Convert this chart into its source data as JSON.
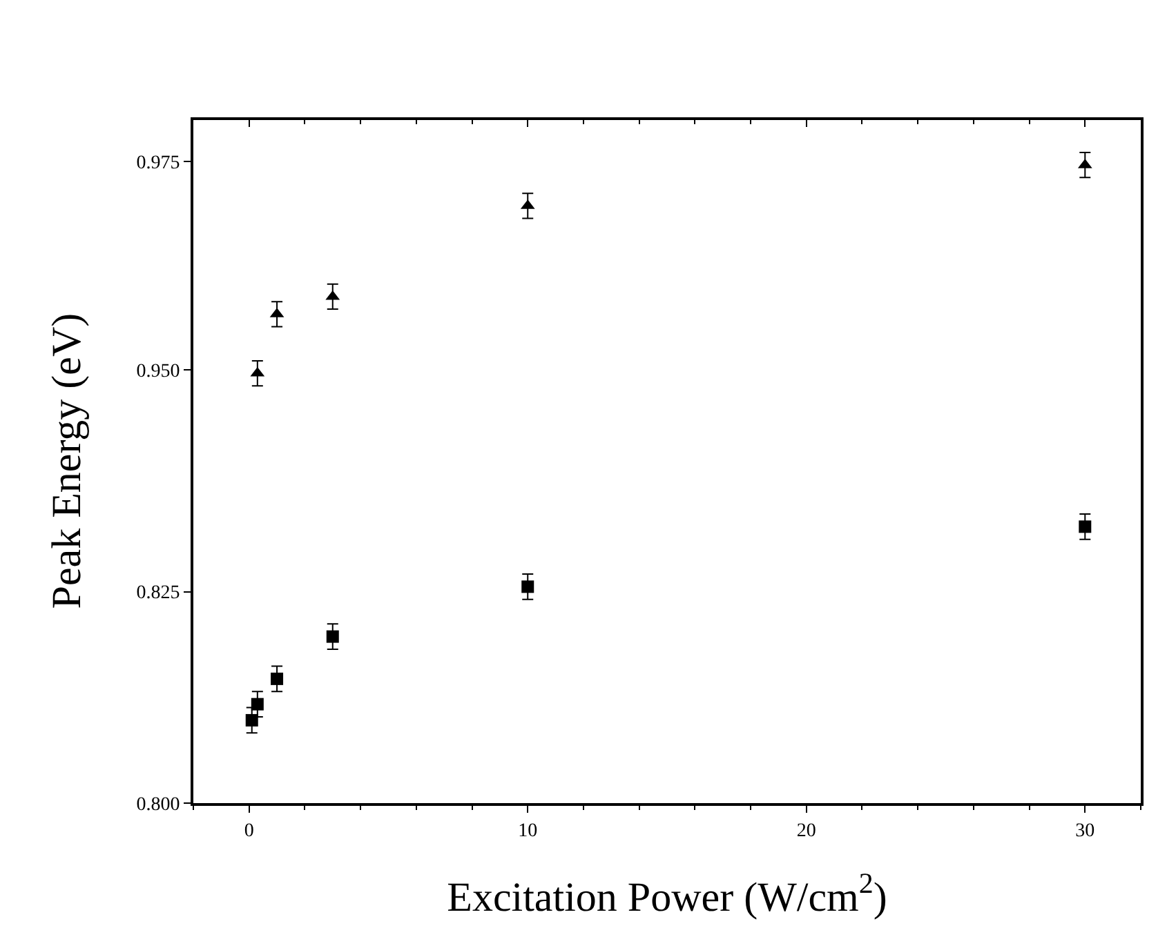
{
  "chart_data": [
    {
      "type": "scatter",
      "ylabel": "Peak Energy (eV)",
      "x": [
        0.3,
        1,
        3,
        10,
        30
      ],
      "xlim": [
        -2,
        32
      ],
      "ylim": [
        0.939,
        0.98
      ],
      "yticks": [
        {
          "value": 0.95,
          "label": "0.950"
        },
        {
          "value": 0.975,
          "label": "0.975"
        }
      ],
      "tick_labels": "y",
      "marker": "triangle",
      "series": [
        {
          "color": "#000000",
          "values": [
            0.9496,
            0.9567,
            0.9588,
            0.9697,
            0.9746
          ],
          "errors": [
            0.0015,
            0.0015,
            0.0015,
            0.0015,
            0.0015
          ]
        }
      ]
    },
    {
      "type": "scatter",
      "xlabel": "Excitation Power (W/cm$^{2}$)",
      "x": [
        0.1,
        0.3,
        1,
        3,
        10,
        30
      ],
      "xlim": [
        -2,
        32
      ],
      "xticks": [
        0,
        10,
        20,
        30
      ],
      "ylim": [
        0.8,
        0.8404
      ],
      "yticks": [
        {
          "value": 0.8,
          "label": "0.800"
        },
        {
          "value": 0.825,
          "label": "0.825"
        }
      ],
      "marker": "square",
      "series": [
        {
          "color": "#000000",
          "values": [
            0.8098,
            0.8117,
            0.8147,
            0.8197,
            0.8256,
            0.8327
          ],
          "errors": [
            0.0015,
            0.0015,
            0.0015,
            0.0015,
            0.0015,
            0.0015
          ]
        }
      ]
    }
  ]
}
